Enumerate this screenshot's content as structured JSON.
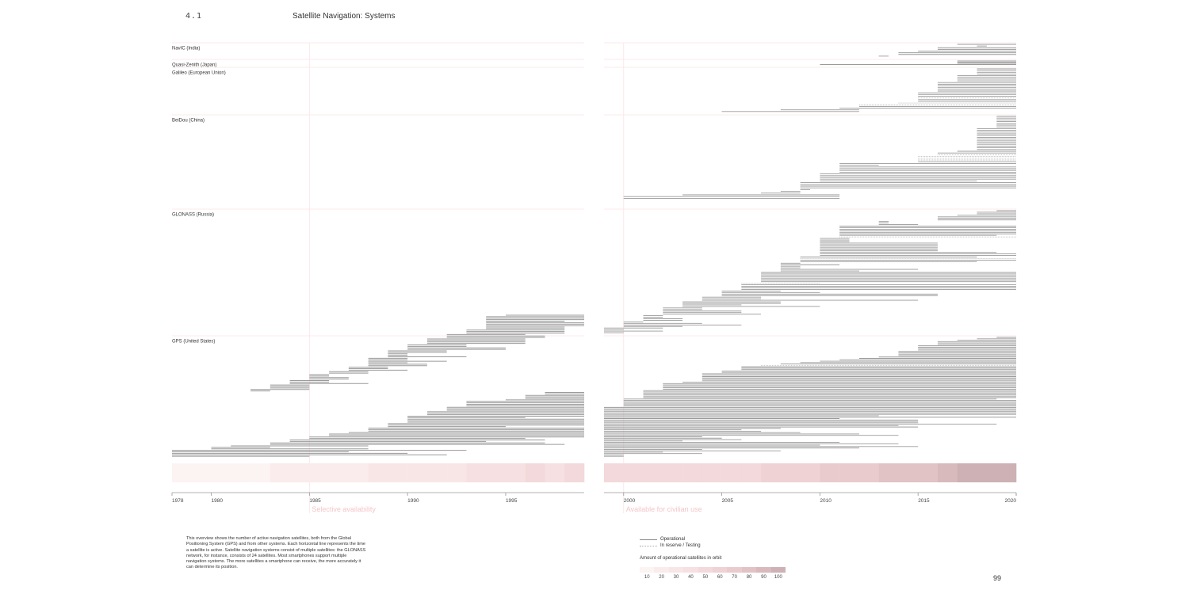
{
  "header": {
    "section_number": "4.1",
    "title": "Satellite Navigation: Systems"
  },
  "page_number": "99",
  "caption": "This overview shows the number of active navigation satellites, both from the Global Positioning System (GPS) and from other systems. Each horizontal line represents the time a satellite is active. Satellite navigation systems consist of multiple satellites: the GLONASS network, for instance, consists of 24 satellites. Most smartphones support multiple navigation systems. The more satellites a smartphone can receive, the more accurately it can determine its position.",
  "legend": {
    "operational": "Operational",
    "reserve": "In reserve / Testing",
    "scale_title": "Amount of operational satellites in orbit",
    "scale_values": [
      "10",
      "20",
      "30",
      "40",
      "50",
      "60",
      "70",
      "80",
      "90",
      "100"
    ],
    "scale_colors": [
      "#fcf3f3",
      "#faecec",
      "#f8e6e7",
      "#f6e0e1",
      "#f3d9db",
      "#efd2d4",
      "#eacbcd",
      "#e1c3c5",
      "#d8babd",
      "#cdb1b4"
    ]
  },
  "chart_data": {
    "type": "timeline",
    "title": "Satellite Navigation: Systems",
    "x_range": [
      1978,
      2020
    ],
    "panels": [
      {
        "name": "left",
        "range": [
          1978,
          1999
        ],
        "ticks": [
          "1978",
          "1980",
          "1985",
          "1990",
          "1995"
        ]
      },
      {
        "name": "right",
        "range": [
          1999,
          2020
        ],
        "ticks": [
          "2000",
          "2005",
          "2010",
          "2015",
          "2020"
        ]
      }
    ],
    "events": [
      {
        "year": 1985,
        "label": "Selective availability"
      },
      {
        "year": 2000,
        "label": "Available for civilian use"
      }
    ],
    "systems": [
      {
        "name": "NavIC (India)",
        "rows": 8,
        "dotted_rows": [],
        "starts": [
          2017,
          2018,
          2016,
          2016,
          2015,
          2014,
          2014,
          2013
        ],
        "ends": [
          2020,
          2018.5,
          2020,
          2020,
          2020,
          2020,
          2020,
          2013.5
        ]
      },
      {
        "name": "Quasi-Zenith (Japan)",
        "rows": 4,
        "dotted_rows": [],
        "starts": [
          2017,
          2017,
          2017,
          2010
        ],
        "ends": [
          2020,
          2020,
          2020,
          2020
        ]
      },
      {
        "name": "Galileo (European Union)",
        "rows": 26,
        "dotted_rows": [
          17,
          20,
          21
        ],
        "starts": [
          2018,
          2018,
          2018,
          2018,
          2017,
          2017,
          2017,
          2017,
          2016,
          2016,
          2016,
          2016,
          2016,
          2016,
          2015,
          2015,
          2015,
          2015,
          2015,
          2015,
          2014,
          2012,
          2012,
          2011,
          2008,
          2005
        ],
        "ends": [
          2020,
          2020,
          2020,
          2020,
          2020,
          2020,
          2020,
          2020,
          2020,
          2020,
          2020,
          2020,
          2020,
          2020,
          2020,
          2020,
          2020,
          2020,
          2020,
          2020,
          2020,
          2020,
          2020,
          2020,
          2012,
          2012
        ]
      },
      {
        "name": "BeiDou (China)",
        "rows": 48,
        "dotted_rows": [
          22,
          23,
          24,
          25
        ],
        "starts": [
          2019,
          2019,
          2019,
          2019,
          2019,
          2019,
          2019,
          2018,
          2018,
          2018,
          2018,
          2018,
          2018,
          2018,
          2018,
          2018,
          2018,
          2018,
          2018,
          2018,
          2017,
          2016,
          2016,
          2015,
          2015,
          2015,
          2015,
          2011,
          2011,
          2011,
          2011,
          2011,
          2011,
          2010,
          2010,
          2010,
          2010,
          2010,
          2009,
          2009,
          2009,
          2009,
          2009,
          2008,
          2007,
          2003,
          2000,
          2000
        ],
        "ends": [
          2020,
          2020,
          2020,
          2020,
          2020,
          2020,
          2020,
          2020,
          2020,
          2020,
          2020,
          2020,
          2020,
          2020,
          2020,
          2020,
          2020,
          2020,
          2020,
          2020,
          2020,
          2020,
          2020,
          2020,
          2020,
          2020,
          2020,
          2020,
          2013,
          2020,
          2020,
          2020,
          2020,
          2020,
          2020,
          2020,
          2020,
          2018,
          2020,
          2020,
          2020,
          2020,
          2009.5,
          2009,
          2009,
          2011,
          2011,
          2011
        ]
      },
      {
        "name": "GLONASS (Russia)",
        "rows": 80,
        "dotted_rows": [
          17,
          31,
          47
        ],
        "starts": [
          2019,
          2018,
          2018,
          2017,
          2016,
          2016,
          2016,
          2013,
          2013,
          2013,
          2011,
          2011,
          2011,
          2011,
          2011,
          2011,
          2011,
          2011,
          2010,
          2010,
          2010,
          2010,
          2010,
          2010,
          2010,
          2010,
          2010,
          2010,
          2010,
          2010,
          2009,
          2009,
          2009,
          2009,
          2008,
          2008,
          2008,
          2008,
          2008,
          2008,
          2007,
          2007,
          2007,
          2007,
          2007,
          2007,
          2007,
          2006,
          2006,
          2006,
          2006,
          2006,
          2005,
          2005,
          2005,
          2005,
          2004,
          2004,
          2004,
          2003,
          2003,
          2003,
          2003,
          2002,
          2002,
          2002,
          2002,
          2002,
          2001,
          2001,
          2001,
          2001,
          2000,
          2000,
          2000,
          2000,
          1999,
          1999,
          1999,
          1999
        ],
        "ends": [
          2020,
          2020,
          2020,
          2020,
          2020,
          2020,
          2020,
          2013.5,
          2013.5,
          2015,
          2020,
          2020,
          2020,
          2020,
          2020,
          2020,
          2019,
          2020,
          2011.5,
          2011.5,
          2011.5,
          2016,
          2016,
          2016,
          2016,
          2016,
          2016,
          2019,
          2020,
          2020,
          2018,
          2020,
          2020,
          2018,
          2009,
          2011,
          2009,
          2009,
          2015,
          2012,
          2020,
          2020,
          2020,
          2020,
          2020,
          2020,
          2020,
          2010,
          2020,
          2020,
          2020,
          2020,
          2008,
          2010,
          2016,
          2016,
          2007,
          2007,
          2015,
          2008,
          2008,
          2006,
          2010,
          2004,
          2004,
          2006,
          2006,
          2007,
          2002,
          2002,
          2003,
          2003,
          2001,
          2004,
          2006,
          2003,
          2002,
          2000,
          2002,
          2000
        ]
      },
      {
        "name": "GPS (United States)",
        "rows": 130,
        "dotted_rows": [
          20
        ],
        "starts": [
          2019,
          2018,
          2017,
          2016,
          2016,
          2016,
          2015,
          2015,
          2015,
          2015,
          2014,
          2014,
          2014,
          2014,
          2013,
          2012,
          2011,
          2010,
          2009,
          2008,
          2007,
          2006,
          2006,
          2006,
          2005,
          2005,
          2004,
          2004,
          2004,
          2004,
          2004,
          2004,
          2003,
          2002,
          2002,
          2002,
          2002,
          2002,
          2001,
          2001,
          2001,
          2001,
          2001,
          2001,
          2000,
          2000,
          2000,
          2000,
          2000,
          2000,
          1999,
          1999,
          1999,
          1999,
          1999,
          1999,
          1999,
          1999,
          1999,
          1999,
          1999,
          1999,
          1999,
          1999,
          1999,
          1999,
          1999,
          1999,
          1999,
          1999,
          1999,
          1999,
          1999,
          1999,
          1999,
          1999,
          1999,
          1999,
          1999,
          1999,
          1999,
          1999,
          1999,
          1999,
          1999,
          1999
        ],
        "ends": [
          2020,
          2020,
          2020,
          2020,
          2020,
          2020,
          2020,
          2020,
          2020,
          2020,
          2020,
          2020,
          2020,
          2020,
          2020,
          2020,
          2020,
          2020,
          2020,
          2020,
          2020,
          2020,
          2020,
          2020,
          2020,
          2020,
          2020,
          2020,
          2020,
          2020,
          2020,
          2020,
          2020,
          2020,
          2020,
          2020,
          2020,
          2020,
          2020,
          2020,
          2020,
          2020,
          2020,
          2020,
          2019,
          2020,
          2020,
          2020,
          2020,
          2020,
          2020,
          2020,
          2020,
          2020,
          2020,
          2020,
          2013,
          2020,
          2011,
          2015,
          2015,
          2015,
          2019,
          2014,
          2015,
          2008,
          2006,
          2007,
          2009,
          2012,
          2014,
          2004,
          2005,
          2006,
          2003,
          2011,
          2014,
          2010,
          2015,
          2012,
          2004,
          2008,
          2002,
          2004,
          2000,
          2000
        ]
      }
    ],
    "gps_early": {
      "comment_free": true,
      "bars": [
        [
          1995,
          1999
        ],
        [
          1994,
          1999
        ],
        [
          1994,
          1999
        ],
        [
          1994,
          1999
        ],
        [
          1994,
          1998
        ],
        [
          1994,
          1999
        ],
        [
          1994,
          1999
        ],
        [
          1994,
          1999
        ],
        [
          1994,
          1998
        ],
        [
          1994,
          1998
        ],
        [
          1993,
          1998
        ],
        [
          1993,
          1998
        ],
        [
          1993,
          1998
        ],
        [
          1992,
          1996
        ],
        [
          1992,
          1997
        ],
        [
          1992,
          1997
        ],
        [
          1991,
          1996
        ],
        [
          1991,
          1996
        ],
        [
          1991,
          1996
        ],
        [
          1991,
          1996
        ],
        [
          1990,
          1993
        ],
        [
          1990,
          1993
        ],
        [
          1990,
          1995
        ],
        [
          1990,
          1995
        ],
        [
          1989,
          1992
        ],
        [
          1989,
          1992
        ],
        [
          1989,
          1990
        ],
        [
          1989,
          1990
        ],
        [
          1989,
          1993
        ],
        [
          1988,
          1990
        ],
        [
          1988,
          1990
        ],
        [
          1988,
          1992
        ],
        [
          1988,
          1990
        ],
        [
          1988,
          1991
        ],
        [
          1988,
          1991
        ],
        [
          1987,
          1989
        ],
        [
          1987,
          1989
        ],
        [
          1987,
          1990
        ],
        [
          1986,
          1988
        ],
        [
          1986,
          1988
        ],
        [
          1985,
          1986
        ],
        [
          1985,
          1986
        ],
        [
          1985,
          1987
        ],
        [
          1985,
          1987
        ],
        [
          1984,
          1986
        ],
        [
          1984,
          1986
        ],
        [
          1984,
          1988
        ],
        [
          1983,
          1985
        ],
        [
          1983,
          1985
        ],
        [
          1983,
          1985
        ],
        [
          1982,
          1985
        ],
        [
          1982,
          1983
        ],
        [
          1997,
          1999
        ],
        [
          1997,
          1999
        ],
        [
          1996,
          1999
        ],
        [
          1996,
          1999
        ],
        [
          1996,
          1999
        ],
        [
          1995,
          1999
        ],
        [
          1993,
          1999
        ],
        [
          1993,
          1999
        ],
        [
          1993,
          1999
        ],
        [
          1993,
          1999
        ],
        [
          1992,
          1999
        ],
        [
          1992,
          1999
        ],
        [
          1992,
          1999
        ],
        [
          1991,
          1999
        ],
        [
          1991,
          1999
        ],
        [
          1991,
          1999
        ],
        [
          1990,
          1999
        ],
        [
          1990,
          1996
        ],
        [
          1990,
          1999
        ],
        [
          1990,
          1999
        ],
        [
          1990,
          1999
        ],
        [
          1989,
          1999
        ],
        [
          1989,
          1999
        ],
        [
          1989,
          1995
        ],
        [
          1988,
          1999
        ],
        [
          1988,
          1999
        ],
        [
          1988,
          1999
        ],
        [
          1987,
          1999
        ],
        [
          1986,
          1999
        ],
        [
          1986,
          1999
        ],
        [
          1985,
          1999
        ],
        [
          1985,
          1996
        ],
        [
          1984,
          1997
        ],
        [
          1984,
          1994
        ],
        [
          1983,
          1997
        ],
        [
          1983,
          1998
        ],
        [
          1981,
          1988
        ],
        [
          1980,
          1983
        ],
        [
          1980,
          1988
        ],
        [
          1978,
          1993
        ],
        [
          1978,
          1987
        ],
        [
          1978,
          1990
        ],
        [
          1978,
          1992
        ],
        [
          1978,
          1985
        ]
      ]
    },
    "counts_by_year": {
      "years": [
        1978,
        1979,
        1980,
        1981,
        1982,
        1983,
        1984,
        1985,
        1986,
        1987,
        1988,
        1989,
        1990,
        1991,
        1992,
        1993,
        1994,
        1995,
        1996,
        1997,
        1998,
        1999,
        2000,
        2001,
        2002,
        2003,
        2004,
        2005,
        2006,
        2007,
        2008,
        2009,
        2010,
        2011,
        2012,
        2013,
        2014,
        2015,
        2016,
        2017,
        2018,
        2019
      ],
      "counts": [
        4,
        5,
        7,
        8,
        8,
        12,
        14,
        17,
        18,
        19,
        21,
        24,
        27,
        28,
        30,
        35,
        38,
        40,
        41,
        40,
        42,
        45,
        46,
        46,
        46,
        45,
        48,
        48,
        50,
        53,
        58,
        60,
        64,
        68,
        70,
        72,
        74,
        80,
        84,
        92,
        96,
        100
      ]
    }
  }
}
